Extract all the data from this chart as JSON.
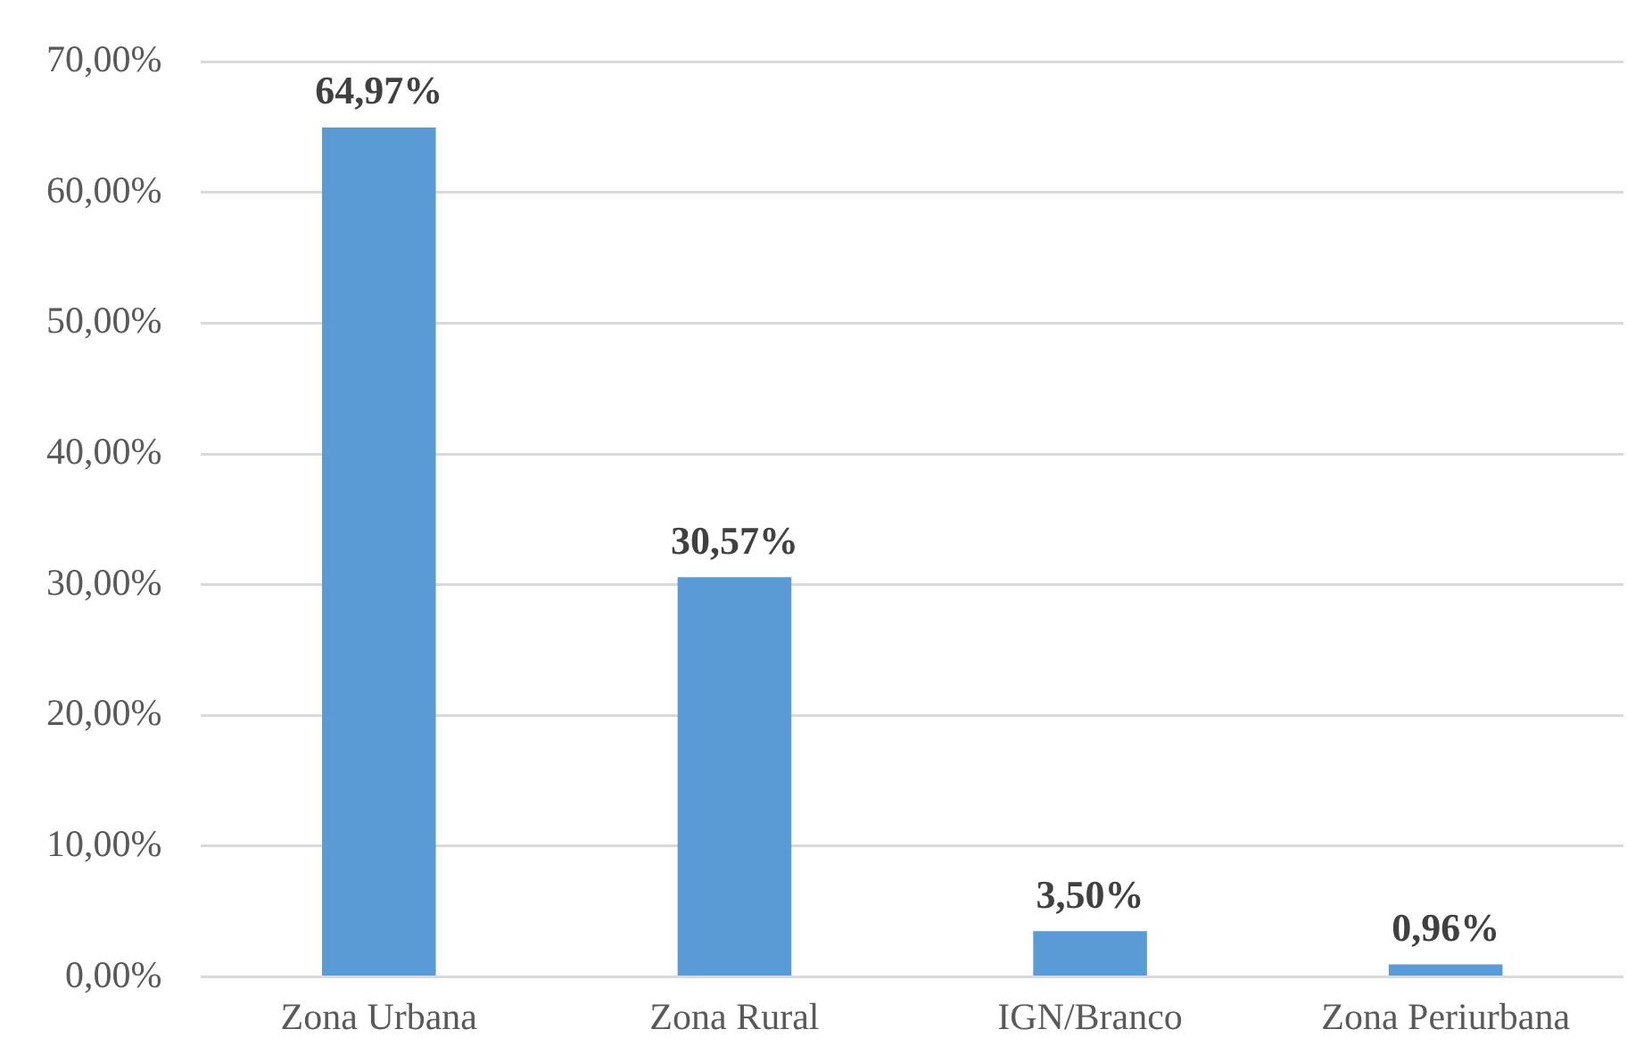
{
  "chart_data": {
    "type": "bar",
    "categories": [
      "Zona Urbana",
      "Zona Rural",
      "IGN/Branco",
      "Zona Periurbana"
    ],
    "values": [
      64.97,
      30.57,
      3.5,
      0.96
    ],
    "value_labels": [
      "64,97%",
      "30,57%",
      "3,50%",
      "0,96%"
    ],
    "color": "#5b9bd5",
    "ylim": [
      0,
      70
    ],
    "yticks": [
      {
        "value": 0,
        "label": "0,00%"
      },
      {
        "value": 10,
        "label": "10,00%"
      },
      {
        "value": 20,
        "label": "20,00%"
      },
      {
        "value": 30,
        "label": "30,00%"
      },
      {
        "value": 40,
        "label": "40,00%"
      },
      {
        "value": 50,
        "label": "50,00%"
      },
      {
        "value": 60,
        "label": "60,00%"
      },
      {
        "value": 70,
        "label": "70,00%"
      }
    ],
    "grid": "y",
    "legend": false
  }
}
